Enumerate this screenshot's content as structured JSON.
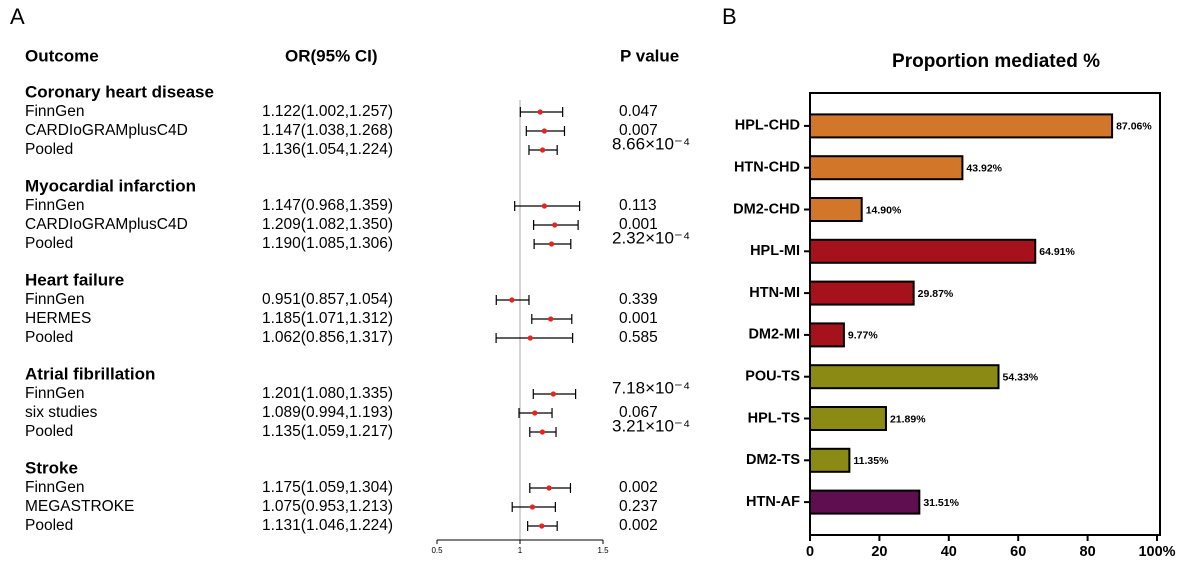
{
  "chart_data": [
    {
      "type": "forest",
      "panel": "A",
      "columns": [
        "Outcome",
        "OR(95% CI)",
        "P value"
      ],
      "xlim": [
        0.5,
        1.5
      ],
      "xticks": [
        0.5,
        1,
        1.5
      ],
      "ref_line": 1,
      "point_color": "#e8231d",
      "groups": [
        {
          "name": "Coronary heart disease",
          "rows": [
            {
              "label": "FinnGen",
              "estimate": 1.122,
              "lower": 1.002,
              "upper": 1.257,
              "estimate_label": "1.122(1.002,1.257)",
              "p_value": "0.047"
            },
            {
              "label": "CARDIoGRAMplusC4D",
              "estimate": 1.147,
              "lower": 1.038,
              "upper": 1.268,
              "estimate_label": "1.147(1.038,1.268)",
              "p_value": "0.007"
            },
            {
              "label": "Pooled",
              "estimate": 1.136,
              "lower": 1.054,
              "upper": 1.224,
              "estimate_label": "1.136(1.054,1.224)",
              "p_value": "8.66×10⁻⁴"
            }
          ]
        },
        {
          "name": "Myocardial infarction",
          "rows": [
            {
              "label": "FinnGen",
              "estimate": 1.147,
              "lower": 0.968,
              "upper": 1.359,
              "estimate_label": "1.147(0.968,1.359)",
              "p_value": "0.113"
            },
            {
              "label": "CARDIoGRAMplusC4D",
              "estimate": 1.209,
              "lower": 1.082,
              "upper": 1.35,
              "estimate_label": "1.209(1.082,1.350)",
              "p_value": "0.001"
            },
            {
              "label": "Pooled",
              "estimate": 1.19,
              "lower": 1.085,
              "upper": 1.306,
              "estimate_label": "1.190(1.085,1.306)",
              "p_value": "2.32×10⁻⁴"
            }
          ]
        },
        {
          "name": "Heart failure",
          "rows": [
            {
              "label": "FinnGen",
              "estimate": 0.951,
              "lower": 0.857,
              "upper": 1.054,
              "estimate_label": "0.951(0.857,1.054)",
              "p_value": "0.339"
            },
            {
              "label": "HERMES",
              "estimate": 1.185,
              "lower": 1.071,
              "upper": 1.312,
              "estimate_label": "1.185(1.071,1.312)",
              "p_value": "0.001"
            },
            {
              "label": "Pooled",
              "estimate": 1.062,
              "lower": 0.856,
              "upper": 1.317,
              "estimate_label": "1.062(0.856,1.317)",
              "p_value": "0.585"
            }
          ]
        },
        {
          "name": "Atrial fibrillation",
          "rows": [
            {
              "label": "FinnGen",
              "estimate": 1.201,
              "lower": 1.08,
              "upper": 1.335,
              "estimate_label": "1.201(1.080,1.335)",
              "p_value": "7.18×10⁻⁴"
            },
            {
              "label": "six studies",
              "estimate": 1.089,
              "lower": 0.994,
              "upper": 1.193,
              "estimate_label": "1.089(0.994,1.193)",
              "p_value": "0.067"
            },
            {
              "label": "Pooled",
              "estimate": 1.135,
              "lower": 1.059,
              "upper": 1.217,
              "estimate_label": "1.135(1.059,1.217)",
              "p_value": "3.21×10⁻⁴"
            }
          ]
        },
        {
          "name": "Stroke",
          "rows": [
            {
              "label": "FinnGen",
              "estimate": 1.175,
              "lower": 1.059,
              "upper": 1.304,
              "estimate_label": "1.175(1.059,1.304)",
              "p_value": "0.002"
            },
            {
              "label": "MEGASTROKE",
              "estimate": 1.075,
              "lower": 0.953,
              "upper": 1.213,
              "estimate_label": "1.075(0.953,1.213)",
              "p_value": "0.237"
            },
            {
              "label": "Pooled",
              "estimate": 1.131,
              "lower": 1.046,
              "upper": 1.224,
              "estimate_label": "1.131(1.046,1.224)",
              "p_value": "0.002"
            }
          ]
        }
      ]
    },
    {
      "type": "hbar",
      "panel": "B",
      "title": "Proportion mediated %",
      "categories": [
        "HPL-CHD",
        "HTN-CHD",
        "DM2-CHD",
        "HPL-MI",
        "HTN-MI",
        "DM2-MI",
        "POU-TS",
        "HPL-TS",
        "DM2-TS",
        "HTN-AF"
      ],
      "values": [
        87.06,
        43.92,
        14.9,
        64.91,
        29.87,
        9.77,
        54.33,
        21.89,
        11.35,
        31.51
      ],
      "value_labels": [
        "87.06%",
        "43.92%",
        "14.90%",
        "64.91%",
        "29.87%",
        "9.77%",
        "54.33%",
        "21.89%",
        "11.35%",
        "31.51%"
      ],
      "colors": [
        "#d2762a",
        "#d2762a",
        "#d2762a",
        "#a5121c",
        "#a5121c",
        "#a5121c",
        "#8a8a14",
        "#8a8a14",
        "#8a8a14",
        "#5f0f50"
      ],
      "xlim": [
        0,
        100
      ],
      "xticks": [
        0,
        20,
        40,
        60,
        80,
        {
          "value": 100,
          "label": "100%"
        }
      ]
    }
  ]
}
